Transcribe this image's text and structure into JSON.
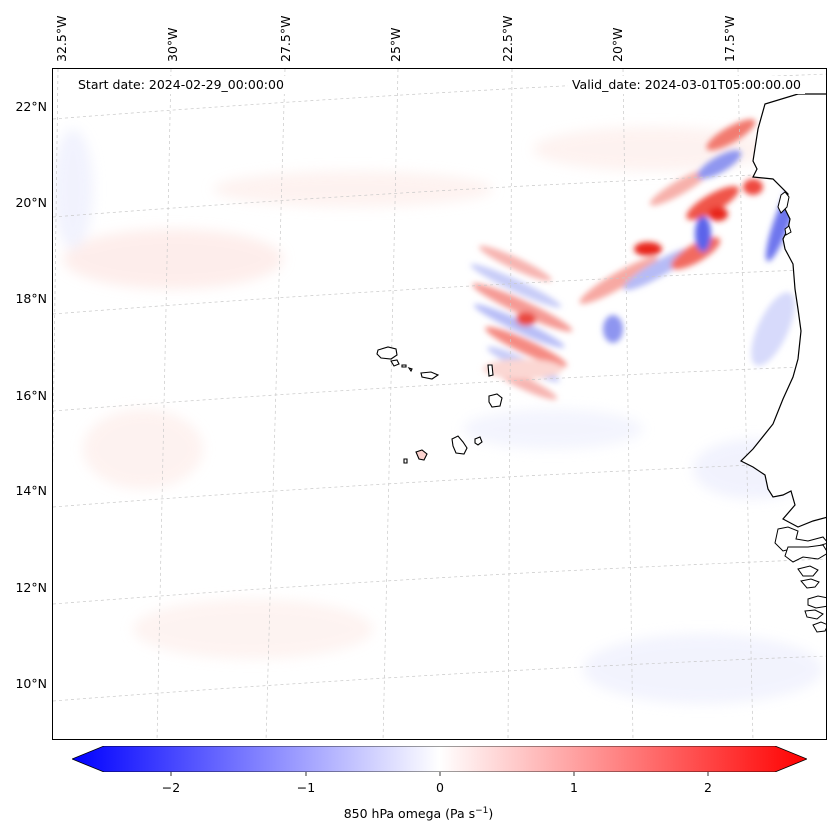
{
  "map": {
    "start_date": "Start date: 2024-02-29_00:00:00",
    "valid_date": "Valid_date: 2024-03-01T05:00:00.00",
    "lon_labels": [
      "32.5°W",
      "30°W",
      "27.5°W",
      "25°W",
      "22.5°W",
      "20°W",
      "17.5°W"
    ],
    "lat_labels": [
      "22°N",
      "20°N",
      "18°N",
      "16°N",
      "14°N",
      "12°N",
      "10°N"
    ],
    "lon_range": [
      -32.8,
      -15.8
    ],
    "lat_range": [
      8.9,
      22.8
    ]
  },
  "colorbar": {
    "title": "850 hPa omega (Pa s",
    "title_sup": "−1",
    "title_end": ")",
    "ticks": [
      "−2",
      "−1",
      "0",
      "1",
      "2"
    ],
    "range": [
      -2.5,
      2.5
    ],
    "colors": {
      "negative": "#0000ff",
      "zero": "#ffffff",
      "positive": "#ff0000"
    }
  }
}
